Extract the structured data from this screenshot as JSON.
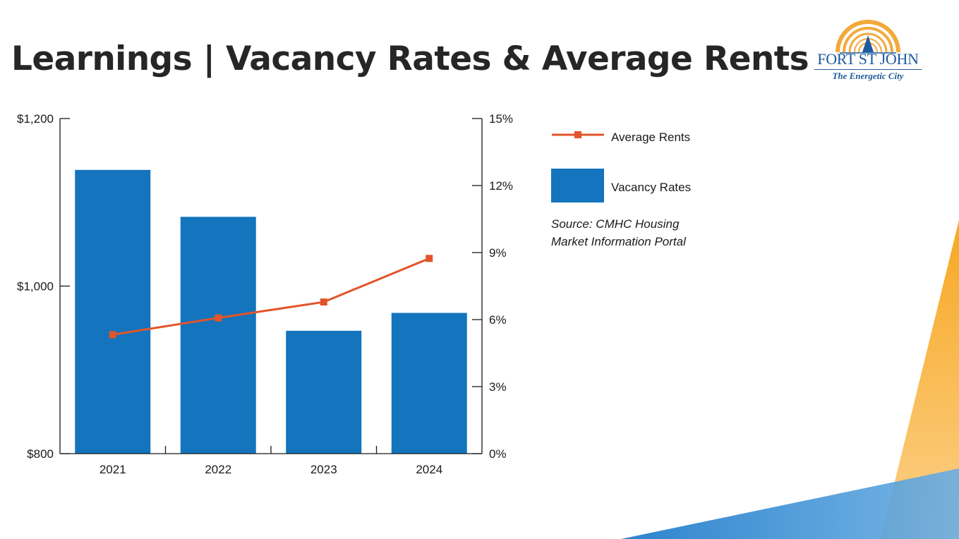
{
  "page": {
    "title": "Learnings | Vacancy Rates & Average Rents"
  },
  "logo": {
    "name": "FORT ST JOHN",
    "tagline": "The Energetic City",
    "colors": {
      "sun": "#f2a93b",
      "text": "#1f5a9c"
    }
  },
  "legend": {
    "line_label": "Average Rents",
    "bar_label": "Vacancy Rates"
  },
  "source": {
    "line1": "Source: CMHC Housing",
    "line2": "Market Information Portal"
  },
  "colors": {
    "bar": "#1474bd",
    "line": "#e2542a",
    "axis": "#1a1a1a",
    "accent_orange": "#f7a823",
    "accent_blue": "#1a7bcf"
  },
  "chart_data": {
    "type": "bar",
    "categories": [
      "2021",
      "2022",
      "2023",
      "2024"
    ],
    "series": [
      {
        "name": "Vacancy Rates",
        "type": "bar",
        "axis": "right",
        "values": [
          12.7,
          10.6,
          5.5,
          6.3
        ]
      },
      {
        "name": "Average Rents",
        "type": "line",
        "axis": "left",
        "values": [
          942,
          962,
          981,
          1033
        ]
      }
    ],
    "y_left": {
      "ticks": [
        800,
        1000,
        1200
      ],
      "tick_labels": [
        "$800",
        "$1,000",
        "$1,200"
      ],
      "ylim": [
        800,
        1200
      ]
    },
    "y_right": {
      "ticks": [
        0,
        3,
        6,
        9,
        12,
        15
      ],
      "tick_labels": [
        "0%",
        "3%",
        "6%",
        "9%",
        "12%",
        "15%"
      ],
      "ylim": [
        0,
        15
      ]
    },
    "grid": false,
    "legend_position": "right"
  }
}
